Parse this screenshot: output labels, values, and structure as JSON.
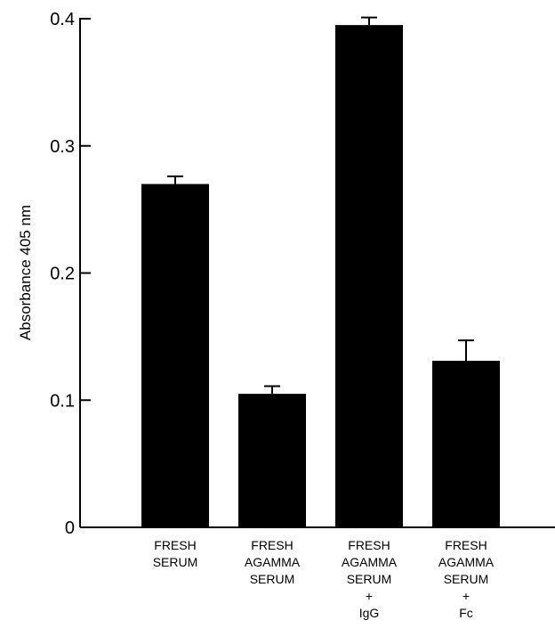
{
  "chart_data": {
    "type": "bar",
    "title": "",
    "xlabel": "",
    "ylabel": "Absorbance 405 nm",
    "ylim": [
      0,
      0.4
    ],
    "yticks": [
      0,
      0.1,
      0.2,
      0.3,
      0.4
    ],
    "ytick_labels": [
      "0",
      "0.1",
      "0.2",
      "0.3",
      "0.4"
    ],
    "grid": false,
    "legend": "none",
    "bar_color": "#000000",
    "categories": [
      [
        "FRESH",
        "SERUM"
      ],
      [
        "FRESH",
        "AGAMMA",
        "SERUM"
      ],
      [
        "FRESH",
        "AGAMMA",
        "SERUM",
        "+",
        "IgG"
      ],
      [
        "FRESH",
        "AGAMMA",
        "SERUM",
        "+",
        "Fc"
      ]
    ],
    "values": [
      0.27,
      0.105,
      0.395,
      0.131
    ],
    "error_upper": [
      0.006,
      0.006,
      0.006,
      0.016
    ]
  }
}
